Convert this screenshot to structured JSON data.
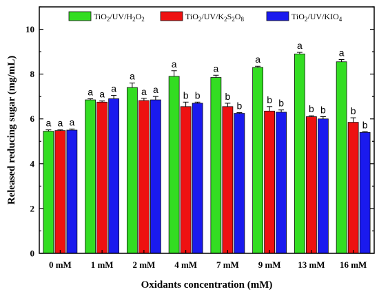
{
  "chart_data": {
    "type": "bar",
    "xlabel": "Oxidants concentration (mM)",
    "ylabel": "Released reducing sugar (mg/mL)",
    "ylim": [
      0,
      11
    ],
    "yticks": [
      0,
      2,
      4,
      6,
      8,
      10
    ],
    "categories": [
      "0 mM",
      "1 mM",
      "2 mM",
      "4 mM",
      "7 mM",
      "9 mM",
      "13 mM",
      "16 mM"
    ],
    "legend_position": "top",
    "grid": false,
    "series": [
      {
        "name": "TiO2/UV/H2O2",
        "legend_parts": [
          [
            "TiO",
            ""
          ],
          [
            "2",
            "sub"
          ],
          [
            "/UV/H",
            ""
          ],
          [
            "2",
            "sub"
          ],
          [
            "O",
            ""
          ],
          [
            "2",
            "sub"
          ]
        ],
        "color": "#33dd22",
        "values": [
          5.45,
          6.85,
          7.4,
          7.9,
          7.85,
          8.3,
          8.9,
          8.55
        ],
        "errors": [
          0.06,
          0.05,
          0.2,
          0.25,
          0.1,
          0.05,
          0.07,
          0.1
        ],
        "letters": [
          "a",
          "a",
          "a",
          "a",
          "a",
          "a",
          "a",
          "a"
        ]
      },
      {
        "name": "TiO2/UV/K2S2O8",
        "legend_parts": [
          [
            "TiO",
            ""
          ],
          [
            "2",
            "sub"
          ],
          [
            "/UV/K",
            ""
          ],
          [
            "2",
            "sub"
          ],
          [
            "S",
            ""
          ],
          [
            "2",
            "sub"
          ],
          [
            "O",
            ""
          ],
          [
            "8",
            "sub"
          ]
        ],
        "color": "#ee1111",
        "values": [
          5.48,
          6.75,
          6.82,
          6.55,
          6.55,
          6.35,
          6.1,
          5.85
        ],
        "errors": [
          0.03,
          0.05,
          0.1,
          0.2,
          0.15,
          0.2,
          0.04,
          0.2
        ],
        "letters": [
          "a",
          "a",
          "a",
          "b",
          "b",
          "b",
          "b",
          "b"
        ]
      },
      {
        "name": "TiO2/UV/KIO4",
        "legend_parts": [
          [
            "TiO",
            ""
          ],
          [
            "2",
            "sub"
          ],
          [
            "/UV/KIO",
            ""
          ],
          [
            "4",
            "sub"
          ]
        ],
        "color": "#1a1aee",
        "values": [
          5.5,
          6.9,
          6.85,
          6.7,
          6.25,
          6.3,
          6.0,
          5.4
        ],
        "errors": [
          0.05,
          0.15,
          0.15,
          0.05,
          0.03,
          0.1,
          0.1,
          0.03
        ],
        "letters": [
          "a",
          "a",
          "a",
          "b",
          "b",
          "b",
          "b",
          "b"
        ]
      }
    ]
  }
}
